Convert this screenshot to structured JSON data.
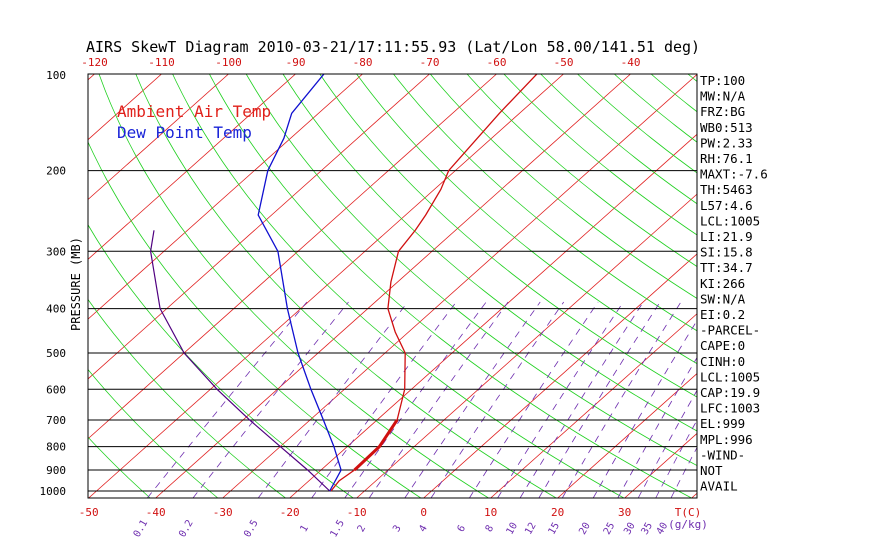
{
  "chart_data": {
    "type": "line",
    "title": "AIRS SkewT Diagram 2010-03-21/17:11:55.93 (Lat/Lon 58.00/141.51 deg)",
    "ylabel": "PRESSURE (MB)",
    "xlabel": "T(C)",
    "mixing_ratio_unit": "(g/kg)",
    "pressure_ticks": [
      100,
      200,
      300,
      400,
      500,
      600,
      700,
      800,
      900,
      1000
    ],
    "pressure_lines": [
      200,
      300,
      400,
      500,
      600,
      700,
      800,
      900,
      1000
    ],
    "top_temp_ticks": [
      -120,
      -110,
      -100,
      -90,
      -80,
      -70,
      -60,
      -50,
      -40
    ],
    "bottom_temp_ticks": [
      -50,
      -40,
      -30,
      -20,
      -10,
      0,
      10,
      20,
      30
    ],
    "mixing_ratio_labels": [
      "0.1",
      "0.2",
      "0.5",
      "1",
      "1.5",
      "2",
      "3",
      "4",
      "6",
      "8",
      "10",
      "12",
      "15",
      "20",
      "25",
      "30",
      "35",
      "40"
    ],
    "mixing_ratio_values": [
      0.1,
      0.2,
      0.5,
      1,
      1.5,
      2,
      3,
      4,
      6,
      8,
      10,
      12,
      15,
      20,
      25,
      30,
      35,
      40
    ],
    "legend": [
      {
        "name": "Ambient Air Temp",
        "color": "#e0201a"
      },
      {
        "name": "Dew Point Temp",
        "color": "#1a24d8"
      }
    ],
    "series": [
      {
        "name": "Ambient Air Temp",
        "color": "#d01010",
        "points": [
          [
            1000,
            -15
          ],
          [
            950,
            -15.5
          ],
          [
            900,
            -15
          ],
          [
            800,
            -15.2
          ],
          [
            700,
            -17
          ],
          [
            600,
            -21
          ],
          [
            500,
            -27
          ],
          [
            450,
            -32
          ],
          [
            400,
            -37
          ],
          [
            350,
            -41
          ],
          [
            300,
            -45
          ],
          [
            270,
            -46
          ],
          [
            250,
            -47
          ],
          [
            220,
            -49
          ],
          [
            200,
            -51
          ],
          [
            150,
            -53
          ],
          [
            100,
            -55
          ]
        ]
      },
      {
        "name": "Dew Point Temp",
        "color": "#1010d0",
        "points": [
          [
            1000,
            -15.2
          ],
          [
            900,
            -17
          ],
          [
            800,
            -22
          ],
          [
            700,
            -28
          ],
          [
            600,
            -35
          ],
          [
            500,
            -43
          ],
          [
            400,
            -52
          ],
          [
            300,
            -63
          ],
          [
            250,
            -72
          ],
          [
            200,
            -78
          ],
          [
            170,
            -81
          ],
          [
            150,
            -84
          ],
          [
            120,
            -86
          ],
          [
            100,
            -87
          ]
        ]
      }
    ],
    "parcel_curve": {
      "name": "Parcel path",
      "color": "#500080",
      "points": [
        [
          1000,
          -15.2
        ],
        [
          900,
          -22
        ],
        [
          800,
          -30
        ],
        [
          700,
          -39
        ],
        [
          600,
          -49
        ],
        [
          500,
          -60
        ],
        [
          400,
          -71
        ],
        [
          300,
          -82
        ],
        [
          270,
          -85
        ]
      ]
    },
    "indices": [
      "TP:100",
      "MW:N/A",
      "FRZ:BG",
      "WB0:513",
      "PW:2.33",
      "RH:76.1",
      "MAXT:-7.6",
      "TH:5463",
      "L57:4.6",
      "LCL:1005",
      "LI:21.9",
      "SI:15.8",
      "TT:34.7",
      "KI:266",
      "SW:N/A",
      "EI:0.2",
      "-PARCEL-",
      "CAPE:0",
      "CINH:0",
      "LCL:1005",
      "CAP:19.9",
      "LFC:1003",
      "EL:999",
      "MPL:996",
      "-WIND-",
      "NOT",
      "AVAIL"
    ],
    "colors": {
      "isotherm": "#e02020",
      "dry_adiabat": "#20d020",
      "moist_adiabat": "#20c020",
      "mixing_ratio": "#7030b0",
      "isobar": "#000000",
      "top_ticks": "#d01010",
      "bottom_ticks": "#d01010"
    }
  }
}
